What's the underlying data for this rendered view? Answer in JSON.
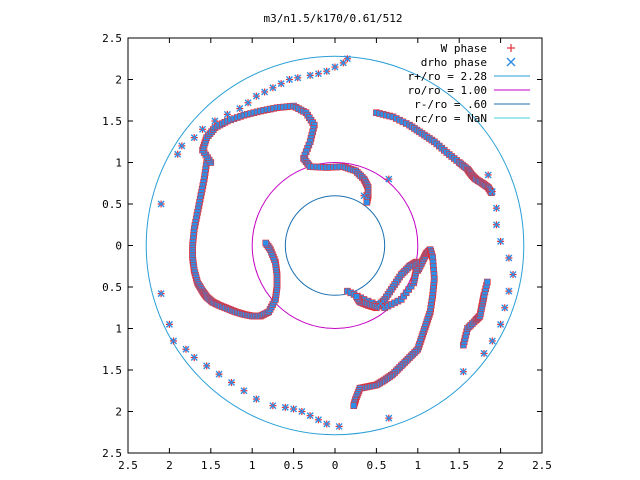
{
  "chart_data": {
    "type": "scatter",
    "title": "m3/n1.5/k170/0.61/512",
    "xlim": [
      -2.5,
      2.5
    ],
    "ylim": [
      -2.5,
      2.5
    ],
    "x_tick_values": [
      -2.5,
      -2,
      -1.5,
      -1,
      -0.5,
      0,
      0.5,
      1,
      1.5,
      2,
      2.5
    ],
    "x_tick_labels": [
      "2.5",
      "2",
      "1.5",
      "1",
      "0.5",
      "0",
      "0.5",
      "1",
      "1.5",
      "2",
      "2.5"
    ],
    "y_tick_values": [
      2.5,
      2,
      1.5,
      1,
      0.5,
      0,
      -0.5,
      -1,
      -1.5,
      -2,
      -2.5
    ],
    "y_tick_labels": [
      "2.5",
      "2",
      "1.5",
      "1",
      "0.5",
      "0",
      "0.5",
      "1",
      "1.5",
      "2",
      "2.5"
    ],
    "grid": false,
    "legend_position": "top-right",
    "circles": [
      {
        "name": "r+/ro = 2.28",
        "r": 2.28,
        "color": "#2a9fd6"
      },
      {
        "name": "ro/ro = 1.00",
        "r": 1.0,
        "color": "#c400c4"
      },
      {
        "name": "r-/ro = .60",
        "r": 0.6,
        "color": "#1a6fb0"
      },
      {
        "name": "rc/ro = NaN",
        "r": null,
        "color": "#44ccdd"
      }
    ],
    "series": [
      {
        "name": "W phase",
        "marker": "plus",
        "color": "#e0303a",
        "x": [
          0.15,
          0.1,
          0.0,
          -0.1,
          -0.2,
          -0.3,
          -0.45,
          -0.55,
          -0.65,
          -0.75,
          -0.85,
          -0.95,
          -1.05,
          -1.15,
          -1.3,
          -1.45,
          -1.6,
          -1.7,
          -1.85,
          -1.9,
          -2.1,
          -2.1,
          -2.0,
          -1.95,
          -1.8,
          -1.7,
          -1.55,
          -1.4,
          -1.25,
          -1.1,
          -0.95,
          -0.75,
          -0.6,
          -0.5,
          -0.4,
          -0.3,
          -0.2,
          -0.1,
          0.05,
          0.65,
          1.55,
          1.8,
          1.9,
          2.0,
          2.05,
          2.1,
          2.15,
          2.1,
          2.0,
          1.95,
          1.95,
          1.9,
          1.85,
          0.65,
          0.35,
          0.55
        ],
        "y": [
          2.25,
          2.2,
          2.15,
          2.1,
          2.07,
          2.05,
          2.02,
          2.0,
          1.95,
          1.9,
          1.85,
          1.8,
          1.72,
          1.65,
          1.58,
          1.5,
          1.4,
          1.3,
          1.2,
          1.1,
          0.5,
          -0.58,
          -0.95,
          -1.15,
          -1.25,
          -1.35,
          -1.45,
          -1.55,
          -1.65,
          -1.75,
          -1.85,
          -1.93,
          -1.95,
          -1.97,
          -2.0,
          -2.05,
          -2.1,
          -2.15,
          -2.18,
          -2.08,
          -1.52,
          -1.3,
          -1.15,
          -0.95,
          -0.75,
          -0.55,
          -0.35,
          -0.15,
          0.05,
          0.25,
          0.45,
          0.65,
          0.85,
          0.8,
          0.6,
          -0.7
        ]
      },
      {
        "name": "drho phase",
        "marker": "cross",
        "color": "#2e8fe8",
        "x": [
          0.15,
          0.1,
          0.0,
          -0.1,
          -0.2,
          -0.3,
          -0.45,
          -0.55,
          -0.65,
          -0.75,
          -0.85,
          -0.95,
          -1.05,
          -1.15,
          -1.3,
          -1.45,
          -1.6,
          -1.7,
          -1.85,
          -1.9,
          -2.1,
          -2.1,
          -2.0,
          -1.95,
          -1.8,
          -1.7,
          -1.55,
          -1.4,
          -1.25,
          -1.1,
          -0.95,
          -0.75,
          -0.6,
          -0.5,
          -0.4,
          -0.3,
          -0.2,
          -0.1,
          0.05,
          0.65,
          1.55,
          1.8,
          1.9,
          2.0,
          2.05,
          2.1,
          2.15,
          2.1,
          2.0,
          1.95,
          1.95,
          1.9,
          1.85,
          0.65,
          0.35,
          0.55
        ],
        "y": [
          2.25,
          2.2,
          2.15,
          2.1,
          2.07,
          2.05,
          2.02,
          2.0,
          1.95,
          1.9,
          1.85,
          1.8,
          1.72,
          1.65,
          1.58,
          1.5,
          1.4,
          1.3,
          1.2,
          1.1,
          0.5,
          -0.58,
          -0.95,
          -1.15,
          -1.25,
          -1.35,
          -1.45,
          -1.55,
          -1.65,
          -1.75,
          -1.85,
          -1.93,
          -1.95,
          -1.97,
          -2.0,
          -2.05,
          -2.1,
          -2.15,
          -2.18,
          -2.08,
          -1.52,
          -1.3,
          -1.15,
          -0.95,
          -0.75,
          -0.55,
          -0.35,
          -0.15,
          0.05,
          0.25,
          0.45,
          0.65,
          0.85,
          0.8,
          0.6,
          -0.7
        ]
      }
    ],
    "dense_arms": [
      {
        "name": "arm-left",
        "x": [
          -1.55,
          -1.58,
          -1.62,
          -1.66,
          -1.7,
          -1.72,
          -1.72,
          -1.7,
          -1.66,
          -1.6,
          -1.55,
          -1.48,
          -1.4,
          -1.3,
          -1.2,
          -1.1,
          -1.0,
          -0.9,
          -0.8,
          -0.72,
          -0.7,
          -0.7,
          -0.72,
          -0.78,
          -0.85
        ],
        "y": [
          1.0,
          0.8,
          0.6,
          0.4,
          0.2,
          0.0,
          -0.15,
          -0.3,
          -0.45,
          -0.55,
          -0.62,
          -0.68,
          -0.72,
          -0.76,
          -0.8,
          -0.83,
          -0.85,
          -0.85,
          -0.8,
          -0.65,
          -0.5,
          -0.35,
          -0.2,
          -0.05,
          0.05
        ]
      },
      {
        "name": "arm-top",
        "x": [
          -1.5,
          -1.6,
          -1.55,
          -1.45,
          -1.3,
          -1.1,
          -0.9,
          -0.7,
          -0.5,
          -0.35,
          -0.25,
          -0.3,
          -0.38,
          -0.3,
          -0.1,
          0.1,
          0.25,
          0.35,
          0.4,
          0.4,
          0.38
        ],
        "y": [
          1.0,
          1.15,
          1.3,
          1.42,
          1.5,
          1.57,
          1.62,
          1.66,
          1.68,
          1.6,
          1.45,
          1.25,
          1.05,
          0.95,
          0.94,
          0.95,
          0.9,
          0.8,
          0.7,
          0.6,
          0.5
        ]
      },
      {
        "name": "arm-top-right",
        "x": [
          0.5,
          0.7,
          0.9,
          1.05,
          1.2,
          1.35,
          1.5,
          1.6,
          1.65,
          1.7,
          1.78,
          1.85,
          1.9
        ],
        "y": [
          1.6,
          1.55,
          1.45,
          1.35,
          1.25,
          1.12,
          1.0,
          0.92,
          0.85,
          0.8,
          0.75,
          0.7,
          0.62
        ]
      },
      {
        "name": "arm-right",
        "x": [
          1.0,
          1.05,
          1.1,
          1.15,
          1.18,
          1.2,
          1.18,
          1.15,
          1.1,
          1.05,
          1.0,
          0.9,
          0.8,
          0.7,
          0.6,
          0.5,
          0.4,
          0.3,
          0.25,
          0.22
        ],
        "y": [
          -0.3,
          -0.2,
          -0.1,
          -0.05,
          -0.15,
          -0.4,
          -0.6,
          -0.8,
          -0.95,
          -1.1,
          -1.25,
          -1.35,
          -1.45,
          -1.55,
          -1.62,
          -1.68,
          -1.7,
          -1.72,
          -1.85,
          -1.95
        ]
      },
      {
        "name": "arm-inner",
        "x": [
          0.15,
          0.35,
          0.6,
          0.8,
          0.95,
          0.98,
          0.98,
          0.9,
          0.8,
          0.7,
          0.6,
          0.5,
          0.4,
          0.3,
          0.25
        ],
        "y": [
          -0.55,
          -0.65,
          -0.75,
          -0.65,
          -0.45,
          -0.3,
          -0.2,
          -0.25,
          -0.35,
          -0.5,
          -0.65,
          -0.75,
          -0.72,
          -0.68,
          -0.6
        ]
      },
      {
        "name": "arm-right-lower",
        "x": [
          1.55,
          1.6,
          1.7,
          1.75,
          1.78,
          1.8,
          1.85
        ],
        "y": [
          -1.2,
          -1.0,
          -0.9,
          -0.85,
          -0.7,
          -0.6,
          -0.4
        ]
      }
    ]
  }
}
